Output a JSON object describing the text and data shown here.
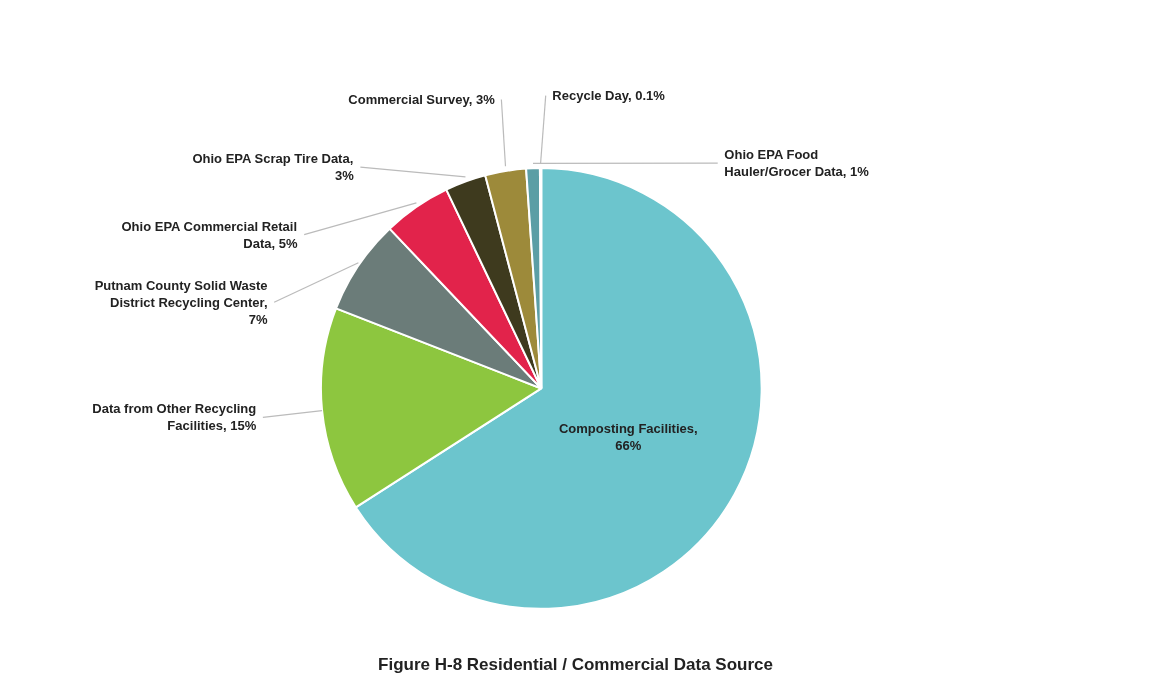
{
  "chart_data": {
    "type": "pie",
    "title": "Figure H-8 Residential / Commercial Data Source",
    "categories": [
      "Composting Facilities, 66%",
      "Data from Other Recycling Facilities, 15%",
      "Putnam County Solid Waste District Recycling Center, 7%",
      "Ohio EPA Commercial Retail Data, 5%",
      "Ohio EPA Scrap Tire Data, 3%",
      "Commercial Survey, 3%",
      "Ohio EPA Food Hauler/Grocer Data, 1%",
      "Recycle Day, 0.1%"
    ],
    "values": [
      66,
      15,
      7,
      5,
      3,
      3,
      1,
      0.1
    ],
    "colors": [
      "#6cc5cd",
      "#8dc63f",
      "#6b7c79",
      "#e2234b",
      "#3e3a1e",
      "#9d8a3a",
      "#5b9ea5",
      "#2b6c8c"
    ]
  }
}
